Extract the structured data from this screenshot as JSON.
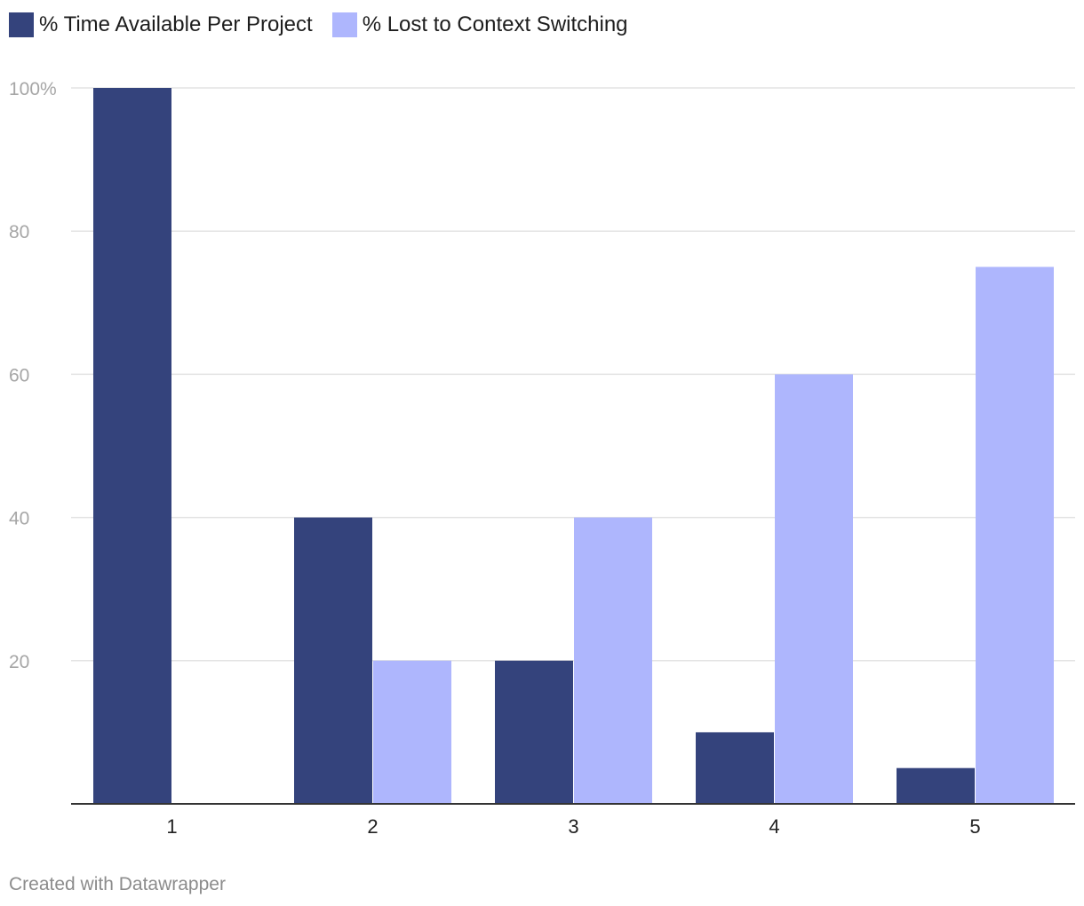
{
  "chart_data": {
    "type": "bar",
    "categories": [
      "1",
      "2",
      "3",
      "4",
      "5"
    ],
    "series": [
      {
        "name": "% Time Available Per Project",
        "color": "#34437c",
        "values": [
          100,
          40,
          20,
          10,
          5
        ]
      },
      {
        "name": "% Lost to Context Switching",
        "color": "#aeb6fd",
        "values": [
          0,
          20,
          40,
          60,
          75
        ]
      }
    ],
    "ylim": [
      0,
      100
    ],
    "yticks": [
      {
        "value": 20,
        "label": "20"
      },
      {
        "value": 40,
        "label": "40"
      },
      {
        "value": 60,
        "label": "60"
      },
      {
        "value": 80,
        "label": "80"
      },
      {
        "value": 100,
        "label": "100%"
      }
    ],
    "grid": true,
    "legend_position": "top-left"
  },
  "footer": {
    "credit": "Created with Datawrapper"
  }
}
